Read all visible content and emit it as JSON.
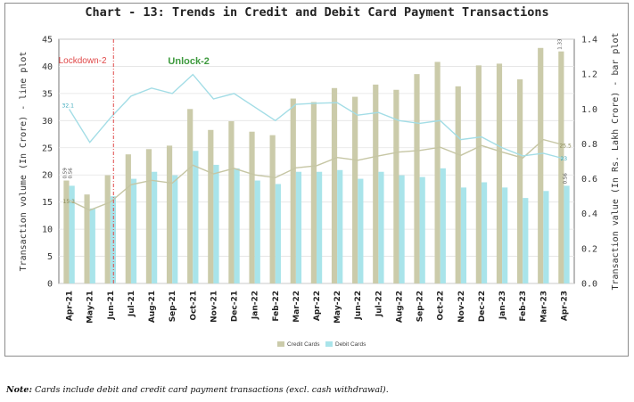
{
  "note": {
    "label": "Note:",
    "text": "Cards include debit and credit card payment transactions (excl. cash withdrawal)."
  },
  "chart_data": {
    "type": "bar",
    "title": "Chart - 13: Trends in Credit and Debit Card Payment Transactions",
    "ylabel_left": "Transaction volume (In Crore) - line plot",
    "ylabel_right": "Transaction value (In Rs. Lakh Crore) - bar plot",
    "ylim_left": [
      0,
      45
    ],
    "yticks_left": [
      0,
      5,
      10,
      15,
      20,
      25,
      30,
      35,
      40,
      45
    ],
    "ylim_right": [
      0,
      1.4
    ],
    "yticks_right": [
      "0.0",
      "0.2",
      "0.4",
      "0.6",
      "0.8",
      "1.0",
      "1.2",
      "1.4"
    ],
    "categories": [
      "Apr-21",
      "May-21",
      "Jun-21",
      "Jul-21",
      "Aug-21",
      "Sep-21",
      "Oct-21",
      "Nov-21",
      "Dec-21",
      "Jan-22",
      "Feb-22",
      "Mar-22",
      "Apr-22",
      "May-22",
      "Jun-22",
      "Jul-22",
      "Aug-22",
      "Sep-22",
      "Oct-22",
      "Nov-22",
      "Dec-22",
      "Jan-23",
      "Feb-23",
      "Mar-23",
      "Apr-23"
    ],
    "bar_series": [
      {
        "name": "Credit Cards",
        "color": "#cbcbaa",
        "values": [
          0.59,
          0.51,
          0.62,
          0.74,
          0.77,
          0.79,
          1.0,
          0.88,
          0.93,
          0.87,
          0.85,
          1.06,
          1.04,
          1.12,
          1.07,
          1.14,
          1.11,
          1.2,
          1.27,
          1.13,
          1.25,
          1.26,
          1.17,
          1.35,
          1.33
        ]
      },
      {
        "name": "Debit Cards",
        "color": "#a9e4ea",
        "values": [
          0.56,
          0.43,
          0.5,
          0.6,
          0.64,
          0.62,
          0.76,
          0.68,
          0.66,
          0.59,
          0.57,
          0.64,
          0.64,
          0.65,
          0.6,
          0.64,
          0.62,
          0.61,
          0.66,
          0.55,
          0.58,
          0.55,
          0.49,
          0.53,
          0.56
        ]
      }
    ],
    "line_series": [
      {
        "name": "Credit Cards",
        "color": "#c6c6a4",
        "values": [
          15.3,
          13.5,
          15.0,
          18.2,
          19.0,
          18.5,
          21.8,
          20.2,
          21.2,
          20.0,
          19.5,
          21.3,
          21.7,
          23.2,
          22.7,
          23.5,
          24.2,
          24.5,
          25.1,
          23.6,
          25.4,
          24.2,
          23.1,
          26.5,
          25.5
        ]
      },
      {
        "name": "Debit Cards",
        "color": "#a3dde6",
        "values": [
          32.1,
          26.0,
          30.5,
          34.5,
          36.0,
          35.0,
          38.5,
          34.0,
          35.0,
          32.5,
          30.0,
          33.0,
          33.2,
          33.3,
          31.0,
          31.5,
          30.0,
          29.5,
          30.0,
          26.5,
          27.0,
          25.0,
          23.5,
          24.0,
          23.0
        ]
      }
    ],
    "data_labels": [
      "0.59",
      "0.56",
      "1.33",
      "0.56",
      "15.3",
      "32.1",
      "25.5",
      "23"
    ],
    "annotations": [
      {
        "text": "Lockdown-2",
        "color": "#e04848"
      },
      {
        "text": "Unlock-2",
        "color": "#3e9a3e"
      }
    ],
    "legend": "bottom-center",
    "grid": "horizontal"
  }
}
